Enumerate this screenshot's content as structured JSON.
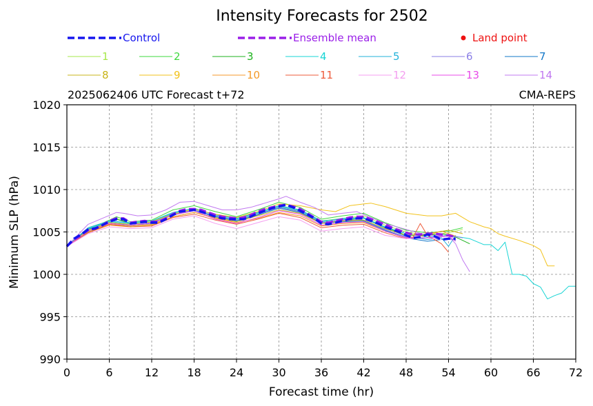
{
  "chart_data": {
    "type": "line",
    "title": "Intensity Forecasts for 2502",
    "subtitle_left": "2025062406 UTC Forecast t+72",
    "subtitle_right": "CMA-REPS",
    "xlabel": "Forecast time (hr)",
    "ylabel": "Minimum SLP (hPa)",
    "xlim": [
      0,
      72
    ],
    "ylim": [
      990,
      1020
    ],
    "xticks": [
      0,
      6,
      12,
      18,
      24,
      30,
      36,
      42,
      48,
      54,
      60,
      66,
      72
    ],
    "yticks": [
      990,
      995,
      1000,
      1005,
      1010,
      1015,
      1020
    ],
    "grid": true,
    "legend_position": "top",
    "land_point_label": "Land point",
    "land_point_color": "#ee1111",
    "series": [
      {
        "name": "Control",
        "color": "#1515ee",
        "style": "dashed",
        "width": 3.4,
        "x": [
          0,
          1,
          2,
          3,
          4,
          5,
          6,
          7,
          8,
          9,
          10,
          11,
          12,
          13,
          14,
          15,
          16,
          17,
          18,
          19,
          20,
          21,
          22,
          23,
          24,
          25,
          26,
          27,
          28,
          29,
          30,
          31,
          32,
          33,
          34,
          35,
          36,
          37,
          38,
          39,
          40,
          41,
          42,
          43,
          44,
          45,
          46,
          47,
          48,
          49,
          50,
          51,
          52,
          53,
          54,
          55
        ],
        "y": [
          1003.3,
          1004.2,
          1004.7,
          1005.3,
          1005.4,
          1005.8,
          1006.2,
          1006.5,
          1006.5,
          1006.0,
          1006.1,
          1006.2,
          1006.1,
          1006.1,
          1006.5,
          1007.0,
          1007.4,
          1007.5,
          1007.6,
          1007.4,
          1007.1,
          1006.8,
          1006.6,
          1006.5,
          1006.5,
          1006.5,
          1006.8,
          1007.2,
          1007.5,
          1007.8,
          1008.0,
          1008.2,
          1007.9,
          1007.5,
          1007.1,
          1006.6,
          1006.0,
          1005.9,
          1006.1,
          1006.3,
          1006.5,
          1006.6,
          1006.6,
          1006.3,
          1006.0,
          1005.6,
          1005.3,
          1005.0,
          1004.6,
          1004.3,
          1004.4,
          1004.7,
          1004.5,
          1004.1,
          1004.2,
          1004.2
        ]
      },
      {
        "name": "Ensemble mean",
        "color": "#9a1ee8",
        "style": "dashed",
        "width": 3.4,
        "x": [
          0,
          1,
          2,
          3,
          4,
          5,
          6,
          7,
          8,
          9,
          10,
          11,
          12,
          13,
          14,
          15,
          16,
          17,
          18,
          19,
          20,
          21,
          22,
          23,
          24,
          25,
          26,
          27,
          28,
          29,
          30,
          31,
          32,
          33,
          34,
          35,
          36,
          37,
          38,
          39,
          40,
          41,
          42,
          43,
          44,
          45,
          46,
          47,
          48,
          49,
          50,
          51,
          52,
          53,
          54,
          55
        ],
        "y": [
          1003.3,
          1004.1,
          1004.6,
          1005.2,
          1005.4,
          1005.8,
          1006.3,
          1006.6,
          1006.6,
          1006.1,
          1006.2,
          1006.3,
          1006.2,
          1006.2,
          1006.6,
          1007.1,
          1007.5,
          1007.7,
          1007.7,
          1007.6,
          1007.3,
          1007.0,
          1006.8,
          1006.7,
          1006.6,
          1006.7,
          1007.0,
          1007.4,
          1007.7,
          1007.9,
          1008.1,
          1008.2,
          1008.0,
          1007.7,
          1007.2,
          1006.7,
          1006.2,
          1006.1,
          1006.3,
          1006.5,
          1006.7,
          1006.8,
          1006.8,
          1006.5,
          1006.2,
          1005.9,
          1005.5,
          1005.2,
          1004.9,
          1004.7,
          1004.7,
          1004.8,
          1004.8,
          1004.7,
          1004.6,
          1004.4
        ]
      },
      {
        "name": "1",
        "color": "#a6e84a",
        "style": "solid",
        "width": 1,
        "x": [
          0,
          3,
          6,
          7,
          9,
          12,
          15,
          18,
          21,
          24,
          27,
          30,
          33,
          36,
          39,
          42,
          45,
          48,
          51,
          54,
          56
        ],
        "y": [
          1003.3,
          1005.5,
          1006.3,
          1006.6,
          1006.0,
          1006.2,
          1007.2,
          1007.7,
          1007.1,
          1006.6,
          1007.3,
          1008.1,
          1007.6,
          1006.3,
          1006.6,
          1006.9,
          1005.8,
          1005.0,
          1004.6,
          1004.9,
          1005.3
        ]
      },
      {
        "name": "2",
        "color": "#3ed83e",
        "style": "solid",
        "width": 1,
        "x": [
          0,
          3,
          6,
          7,
          9,
          12,
          15,
          18,
          21,
          24,
          27,
          30,
          33,
          36,
          39,
          42,
          45,
          48,
          51,
          54,
          56
        ],
        "y": [
          1003.3,
          1005.3,
          1006.4,
          1006.8,
          1006.2,
          1006.4,
          1007.6,
          1008.1,
          1007.4,
          1006.8,
          1007.6,
          1008.5,
          1007.9,
          1006.5,
          1006.9,
          1007.2,
          1006.1,
          1005.2,
          1004.9,
          1005.1,
          1005.5
        ]
      },
      {
        "name": "3",
        "color": "#1cb21c",
        "style": "solid",
        "width": 1,
        "x": [
          0,
          3,
          6,
          7,
          9,
          12,
          15,
          18,
          21,
          24,
          27,
          30,
          33,
          36,
          39,
          42,
          45,
          48,
          51,
          53,
          55,
          57
        ],
        "y": [
          1003.3,
          1005.1,
          1006.1,
          1006.5,
          1006.0,
          1006.1,
          1007.1,
          1007.6,
          1006.9,
          1006.4,
          1007.1,
          1007.9,
          1007.4,
          1006.1,
          1006.4,
          1006.6,
          1005.6,
          1004.6,
          1004.6,
          1004.8,
          1004.4,
          1003.6
        ]
      },
      {
        "name": "4",
        "color": "#16d4d4",
        "style": "solid",
        "width": 1,
        "x": [
          0,
          3,
          6,
          9,
          12,
          15,
          18,
          21,
          24,
          27,
          30,
          33,
          36,
          39,
          42,
          45,
          48,
          51,
          54,
          57,
          59,
          60,
          61,
          62,
          63,
          64,
          65,
          66,
          67,
          68,
          69,
          70,
          71,
          72
        ],
        "y": [
          1003.3,
          1005.4,
          1006.2,
          1006.0,
          1006.2,
          1007.2,
          1007.6,
          1006.9,
          1006.5,
          1007.2,
          1008.0,
          1007.5,
          1006.2,
          1006.6,
          1006.7,
          1005.6,
          1004.8,
          1004.4,
          1004.6,
          1004.2,
          1003.5,
          1003.5,
          1002.8,
          1003.8,
          1000.0,
          1000.0,
          999.8,
          998.9,
          998.5,
          997.1,
          997.5,
          997.8,
          998.6,
          998.6
        ]
      },
      {
        "name": "5",
        "color": "#22b2da",
        "style": "solid",
        "width": 1,
        "x": [
          0,
          3,
          6,
          9,
          12,
          15,
          18,
          21,
          24,
          27,
          30,
          33,
          36,
          39,
          42,
          45,
          48,
          51,
          53,
          54,
          55
        ],
        "y": [
          1003.3,
          1005.5,
          1006.3,
          1006.1,
          1006.3,
          1007.3,
          1007.8,
          1007.0,
          1006.6,
          1007.3,
          1008.1,
          1007.6,
          1006.3,
          1006.5,
          1006.6,
          1005.5,
          1004.5,
          1004.1,
          1004.3,
          1003.3,
          1004.6
        ]
      },
      {
        "name": "6",
        "color": "#8a7ee6",
        "style": "solid",
        "width": 1,
        "x": [
          0,
          3,
          6,
          9,
          12,
          15,
          18,
          21,
          24,
          27,
          30,
          33,
          36,
          39,
          42,
          45,
          48,
          51,
          54,
          56
        ],
        "y": [
          1003.3,
          1005.3,
          1006.1,
          1005.9,
          1006.1,
          1007.1,
          1007.6,
          1006.9,
          1006.4,
          1007.1,
          1007.9,
          1007.4,
          1006.1,
          1006.4,
          1006.4,
          1005.3,
          1004.4,
          1004.3,
          1004.6,
          1004.3
        ]
      },
      {
        "name": "7",
        "color": "#1277c8",
        "style": "solid",
        "width": 1,
        "x": [
          0,
          3,
          6,
          9,
          12,
          15,
          18,
          21,
          24,
          27,
          30,
          33,
          36,
          39,
          42,
          45,
          48,
          51,
          54,
          55
        ],
        "y": [
          1003.3,
          1005.3,
          1006.1,
          1005.8,
          1006.0,
          1007.0,
          1007.5,
          1006.8,
          1006.3,
          1007.0,
          1007.8,
          1007.3,
          1006.0,
          1006.2,
          1006.3,
          1005.2,
          1004.3,
          1003.9,
          1004.2,
          1004.0
        ]
      },
      {
        "name": "8",
        "color": "#c8b418",
        "style": "solid",
        "width": 1,
        "x": [
          0,
          3,
          6,
          9,
          12,
          15,
          18,
          21,
          24,
          27,
          30,
          33,
          36,
          39,
          42,
          45,
          48,
          51,
          54,
          56
        ],
        "y": [
          1003.3,
          1005.0,
          1005.9,
          1005.7,
          1005.9,
          1006.8,
          1007.3,
          1006.7,
          1006.2,
          1006.9,
          1007.6,
          1007.2,
          1006.0,
          1006.3,
          1006.4,
          1005.4,
          1004.6,
          1004.8,
          1005.2,
          1004.8
        ]
      },
      {
        "name": "9",
        "color": "#f2c21a",
        "style": "solid",
        "width": 1,
        "x": [
          0,
          3,
          6,
          9,
          12,
          15,
          18,
          21,
          24,
          27,
          30,
          33,
          36,
          38,
          40,
          42,
          43,
          45,
          48,
          51,
          53,
          55,
          57,
          59,
          60,
          61,
          62,
          64,
          66,
          67,
          68,
          69
        ],
        "y": [
          1003.3,
          1005.2,
          1006.1,
          1005.9,
          1006.2,
          1007.1,
          1007.7,
          1007.1,
          1006.7,
          1007.4,
          1008.3,
          1008.1,
          1007.6,
          1007.4,
          1008.1,
          1008.3,
          1008.4,
          1008.0,
          1007.2,
          1006.9,
          1006.9,
          1007.2,
          1006.2,
          1005.6,
          1005.4,
          1004.8,
          1004.5,
          1004.0,
          1003.4,
          1002.9,
          1001.0,
          1001.0
        ]
      },
      {
        "name": "10",
        "color": "#f49a28",
        "style": "solid",
        "width": 1,
        "x": [
          0,
          3,
          6,
          9,
          12,
          15,
          18,
          21,
          24,
          27,
          30,
          33,
          36,
          39,
          42,
          45,
          48,
          51,
          53,
          55
        ],
        "y": [
          1003.3,
          1004.9,
          1005.8,
          1005.6,
          1005.8,
          1006.8,
          1007.3,
          1006.6,
          1006.1,
          1006.6,
          1007.3,
          1006.9,
          1005.7,
          1006.0,
          1006.1,
          1005.1,
          1004.3,
          1004.6,
          1005.1,
          1004.5
        ]
      },
      {
        "name": "11",
        "color": "#ee5a3a",
        "style": "solid",
        "width": 1,
        "x": [
          0,
          3,
          6,
          9,
          12,
          15,
          18,
          21,
          24,
          27,
          30,
          33,
          36,
          39,
          42,
          45,
          48,
          49,
          50,
          51,
          53,
          54
        ],
        "y": [
          1003.3,
          1004.9,
          1005.9,
          1005.6,
          1005.7,
          1006.7,
          1007.1,
          1006.4,
          1005.9,
          1006.5,
          1007.2,
          1006.7,
          1005.5,
          1005.8,
          1005.9,
          1004.9,
          1004.2,
          1004.4,
          1006.0,
          1004.6,
          1003.6,
          1002.6
        ]
      },
      {
        "name": "12",
        "color": "#f49ef0",
        "style": "solid",
        "width": 1,
        "x": [
          0,
          3,
          6,
          9,
          12,
          15,
          18,
          21,
          24,
          27,
          30,
          33,
          36,
          39,
          42,
          45,
          48,
          51,
          53
        ],
        "y": [
          1003.3,
          1004.8,
          1005.6,
          1005.4,
          1005.5,
          1006.5,
          1006.9,
          1006.0,
          1005.4,
          1006.1,
          1006.8,
          1006.4,
          1005.1,
          1005.4,
          1005.6,
          1004.6,
          1004.2,
          1004.3,
          1004.1
        ]
      },
      {
        "name": "13",
        "color": "#e84ae8",
        "style": "solid",
        "width": 1,
        "x": [
          0,
          3,
          6,
          9,
          12,
          15,
          18,
          21,
          24,
          27,
          30,
          33,
          36,
          39,
          42,
          45,
          48,
          51,
          54,
          55
        ],
        "y": [
          1003.3,
          1005.1,
          1006.0,
          1005.8,
          1006.0,
          1007.0,
          1007.5,
          1006.5,
          1006.0,
          1006.7,
          1007.5,
          1007.1,
          1005.8,
          1006.1,
          1006.2,
          1005.1,
          1004.3,
          1004.3,
          1004.5,
          1003.9
        ]
      },
      {
        "name": "14",
        "color": "#c078f0",
        "style": "solid",
        "width": 1,
        "x": [
          0,
          3,
          5,
          7,
          8,
          10,
          12,
          14,
          16,
          18,
          20,
          22,
          24,
          26,
          28,
          30,
          31,
          33,
          35,
          37,
          39,
          41,
          43,
          45,
          48,
          51,
          54,
          55,
          56,
          57
        ],
        "y": [
          1003.3,
          1005.9,
          1006.6,
          1007.3,
          1007.2,
          1006.9,
          1007.0,
          1007.6,
          1008.5,
          1008.6,
          1008.1,
          1007.6,
          1007.6,
          1007.9,
          1008.4,
          1008.9,
          1009.2,
          1008.5,
          1007.9,
          1007.0,
          1007.2,
          1007.4,
          1006.7,
          1006.0,
          1005.3,
          1004.6,
          1004.5,
          1003.6,
          1001.7,
          1000.3
        ]
      }
    ]
  }
}
